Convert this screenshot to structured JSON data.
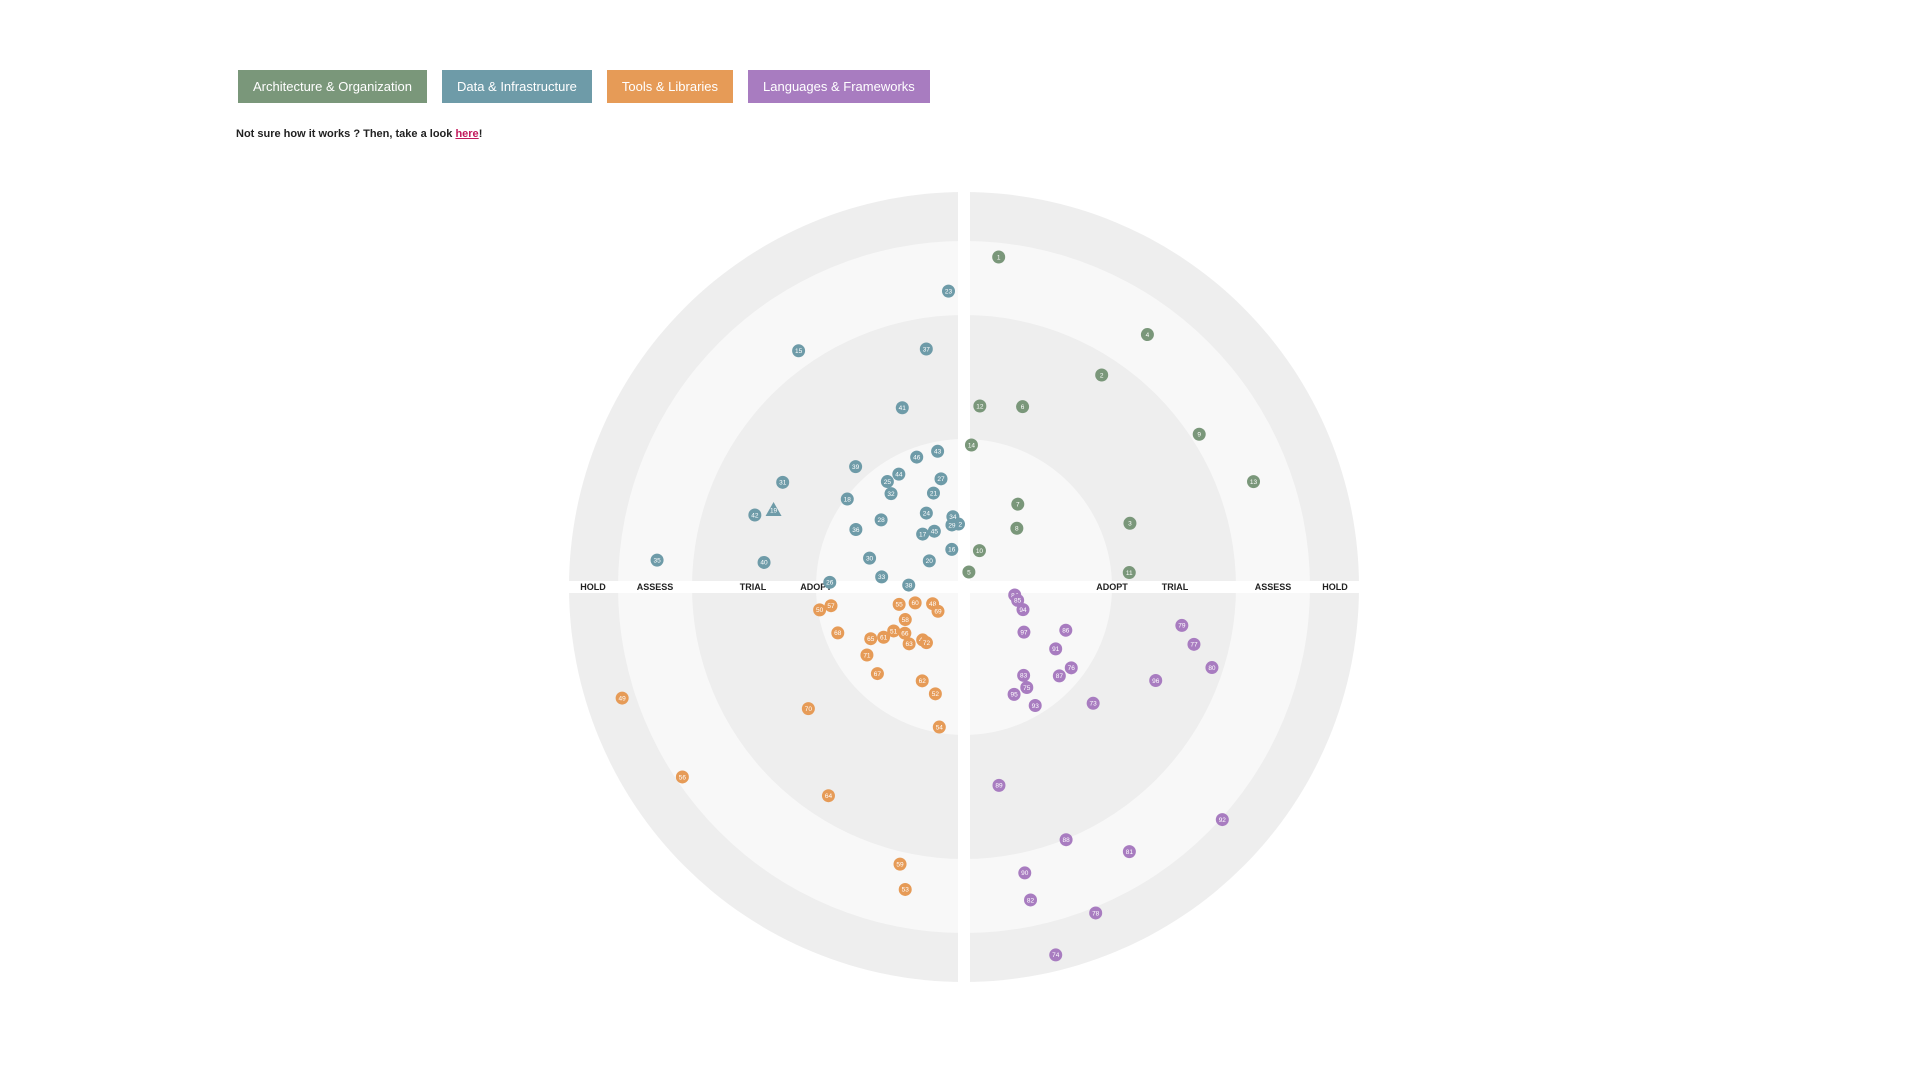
{
  "quadrant_tabs": [
    {
      "label": "Architecture & Organization",
      "color": "#7a977a"
    },
    {
      "label": "Data & Infrastructure",
      "color": "#6e9ba8"
    },
    {
      "label": "Tools & Libraries",
      "color": "#e69b57"
    },
    {
      "label": "Languages & Frameworks",
      "color": "#a87cc0"
    }
  ],
  "help": {
    "prefix": "Not sure how it works ? Then, take a look ",
    "link": "here",
    "suffix": "!"
  },
  "chart_data": {
    "type": "scatter",
    "rings": [
      "ADOPT",
      "TRIAL",
      "ASSESS",
      "HOLD"
    ],
    "quadrants": [
      {
        "name": "Architecture & Organization",
        "color": "#7a977a"
      },
      {
        "name": "Data & Infrastructure",
        "color": "#6e9ba8"
      },
      {
        "name": "Tools & Libraries",
        "color": "#e69b57"
      },
      {
        "name": "Languages & Frameworks",
        "color": "#a87cc0"
      }
    ],
    "ring_colors": [
      "#eeeeee",
      "#f8f8f8",
      "#eeeeee",
      "#f8f8f8",
      "#eeeeee"
    ],
    "blips": [
      {
        "id": "1",
        "q": 0,
        "r": 0.84,
        "a": 84,
        "shape": "circle"
      },
      {
        "id": "2",
        "q": 0,
        "r": 0.64,
        "a": 57,
        "shape": "circle"
      },
      {
        "id": "3",
        "q": 0,
        "r": 0.45,
        "a": 21,
        "shape": "circle"
      },
      {
        "id": "4",
        "q": 0,
        "r": 0.79,
        "a": 54,
        "shape": "circle"
      },
      {
        "id": "5",
        "q": 0,
        "r": 0.04,
        "a": 72,
        "shape": "circle"
      },
      {
        "id": "6",
        "q": 0,
        "r": 0.48,
        "a": 72,
        "shape": "circle"
      },
      {
        "id": "7",
        "q": 0,
        "r": 0.25,
        "a": 57,
        "shape": "circle"
      },
      {
        "id": "8",
        "q": 0,
        "r": 0.2,
        "a": 48,
        "shape": "circle"
      },
      {
        "id": "9",
        "q": 0,
        "r": 0.71,
        "a": 33,
        "shape": "circle"
      },
      {
        "id": "10",
        "q": 0,
        "r": 0.1,
        "a": 67,
        "shape": "circle"
      },
      {
        "id": "11",
        "q": 0,
        "r": 0.42,
        "a": 5,
        "shape": "circle"
      },
      {
        "id": "12",
        "q": 0,
        "r": 0.46,
        "a": 85,
        "shape": "circle"
      },
      {
        "id": "13",
        "q": 0,
        "r": 0.78,
        "a": 20,
        "shape": "circle"
      },
      {
        "id": "14",
        "q": 0,
        "r": 0.36,
        "a": 87,
        "shape": "circle"
      },
      {
        "id": "15",
        "q": 1,
        "r": 0.73,
        "a": 125,
        "shape": "circle"
      },
      {
        "id": "16",
        "q": 1,
        "r": 0.1,
        "a": 108,
        "shape": "circle"
      },
      {
        "id": "17",
        "q": 1,
        "r": 0.17,
        "a": 128,
        "shape": "circle"
      },
      {
        "id": "18",
        "q": 1,
        "r": 0.37,
        "a": 143,
        "shape": "circle"
      },
      {
        "id": "19",
        "q": 1,
        "r": 0.52,
        "a": 158,
        "shape": "triangle"
      },
      {
        "id": "20",
        "q": 1,
        "r": 0.11,
        "a": 143,
        "shape": "circle"
      },
      {
        "id": "21",
        "q": 1,
        "r": 0.25,
        "a": 108,
        "shape": "circle"
      },
      {
        "id": "22",
        "q": 1,
        "r": 0.16,
        "a": 95,
        "shape": "circle"
      },
      {
        "id": "23",
        "q": 1,
        "r": 0.75,
        "a": 93,
        "shape": "circle"
      },
      {
        "id": "24",
        "q": 1,
        "r": 0.21,
        "a": 117,
        "shape": "circle"
      },
      {
        "id": "25",
        "q": 1,
        "r": 0.33,
        "a": 126,
        "shape": "circle"
      },
      {
        "id": "26",
        "q": 1,
        "r": 0.34,
        "a": 178,
        "shape": "circle"
      },
      {
        "id": "27",
        "q": 1,
        "r": 0.28,
        "a": 102,
        "shape": "circle"
      },
      {
        "id": "28",
        "q": 1,
        "r": 0.27,
        "a": 141,
        "shape": "circle"
      },
      {
        "id": "29",
        "q": 1,
        "r": 0.16,
        "a": 101,
        "shape": "circle"
      },
      {
        "id": "30",
        "q": 1,
        "r": 0.25,
        "a": 163,
        "shape": "circle"
      },
      {
        "id": "31",
        "q": 1,
        "r": 0.53,
        "a": 150,
        "shape": "circle"
      },
      {
        "id": "32",
        "q": 1,
        "r": 0.3,
        "a": 128,
        "shape": "circle"
      },
      {
        "id": "33",
        "q": 1,
        "r": 0.21,
        "a": 173,
        "shape": "circle"
      },
      {
        "id": "34",
        "q": 1,
        "r": 0.18,
        "a": 99,
        "shape": "circle"
      },
      {
        "id": "35",
        "q": 1,
        "r": 0.78,
        "a": 175,
        "shape": "circle"
      },
      {
        "id": "36",
        "q": 1,
        "r": 0.31,
        "a": 152,
        "shape": "circle"
      },
      {
        "id": "37",
        "q": 1,
        "r": 0.61,
        "a": 99,
        "shape": "circle"
      },
      {
        "id": "38",
        "q": 1,
        "r": 0.14,
        "a": 178,
        "shape": "circle"
      },
      {
        "id": "39",
        "q": 1,
        "r": 0.41,
        "a": 132,
        "shape": "circle"
      },
      {
        "id": "40",
        "q": 1,
        "r": 0.51,
        "a": 173,
        "shape": "circle"
      },
      {
        "id": "41",
        "q": 1,
        "r": 0.48,
        "a": 109,
        "shape": "circle"
      },
      {
        "id": "42",
        "q": 1,
        "r": 0.56,
        "a": 161,
        "shape": "circle"
      },
      {
        "id": "43",
        "q": 1,
        "r": 0.35,
        "a": 101,
        "shape": "circle"
      },
      {
        "id": "44",
        "q": 1,
        "r": 0.33,
        "a": 120,
        "shape": "circle"
      },
      {
        "id": "45",
        "q": 1,
        "r": 0.16,
        "a": 118,
        "shape": "circle"
      },
      {
        "id": "46",
        "q": 1,
        "r": 0.35,
        "a": 110,
        "shape": "circle"
      },
      {
        "id": "47",
        "q": 2,
        "r": 0.17,
        "a": 232,
        "shape": "circle"
      },
      {
        "id": "48",
        "q": 2,
        "r": 0.09,
        "a": 208,
        "shape": "circle"
      },
      {
        "id": "49",
        "q": 2,
        "r": 0.91,
        "a": 198,
        "shape": "circle"
      },
      {
        "id": "50",
        "q": 2,
        "r": 0.37,
        "a": 189,
        "shape": "circle"
      },
      {
        "id": "51",
        "q": 2,
        "r": 0.21,
        "a": 212,
        "shape": "circle"
      },
      {
        "id": "52",
        "q": 2,
        "r": 0.28,
        "a": 255,
        "shape": "circle"
      },
      {
        "id": "53",
        "q": 2,
        "r": 0.78,
        "a": 259,
        "shape": "circle"
      },
      {
        "id": "54",
        "q": 2,
        "r": 0.36,
        "a": 260,
        "shape": "circle"
      },
      {
        "id": "55",
        "q": 2,
        "r": 0.17,
        "a": 195,
        "shape": "circle"
      },
      {
        "id": "56",
        "q": 2,
        "r": 0.86,
        "a": 214,
        "shape": "circle"
      },
      {
        "id": "57",
        "q": 2,
        "r": 0.34,
        "a": 188,
        "shape": "circle"
      },
      {
        "id": "58",
        "q": 2,
        "r": 0.17,
        "a": 209,
        "shape": "circle"
      },
      {
        "id": "59",
        "q": 2,
        "r": 0.72,
        "a": 257,
        "shape": "circle"
      },
      {
        "id": "60",
        "q": 2,
        "r": 0.13,
        "a": 198,
        "shape": "circle"
      },
      {
        "id": "61",
        "q": 2,
        "r": 0.24,
        "a": 212,
        "shape": "circle"
      },
      {
        "id": "62",
        "q": 2,
        "r": 0.26,
        "a": 246,
        "shape": "circle"
      },
      {
        "id": "63",
        "q": 2,
        "r": 0.2,
        "a": 226,
        "shape": "circle"
      },
      {
        "id": "64",
        "q": 2,
        "r": 0.63,
        "a": 237,
        "shape": "circle"
      },
      {
        "id": "65",
        "q": 2,
        "r": 0.27,
        "a": 209,
        "shape": "circle"
      },
      {
        "id": "66",
        "q": 2,
        "r": 0.19,
        "a": 218,
        "shape": "circle"
      },
      {
        "id": "67",
        "q": 2,
        "r": 0.31,
        "a": 225,
        "shape": "circle"
      },
      {
        "id": "68",
        "q": 2,
        "r": 0.34,
        "a": 200,
        "shape": "circle"
      },
      {
        "id": "69",
        "q": 2,
        "r": 0.09,
        "a": 223,
        "shape": "circle"
      },
      {
        "id": "70",
        "q": 2,
        "r": 0.5,
        "a": 218,
        "shape": "circle"
      },
      {
        "id": "71",
        "q": 2,
        "r": 0.3,
        "a": 215,
        "shape": "circle"
      },
      {
        "id": "72",
        "q": 2,
        "r": 0.17,
        "a": 236,
        "shape": "circle"
      },
      {
        "id": "73",
        "q": 3,
        "r": 0.44,
        "a": 318,
        "shape": "circle"
      },
      {
        "id": "74",
        "q": 3,
        "r": 0.96,
        "a": 284,
        "shape": "circle"
      },
      {
        "id": "75",
        "q": 3,
        "r": 0.3,
        "a": 302,
        "shape": "circle"
      },
      {
        "id": "76",
        "q": 3,
        "r": 0.34,
        "a": 323,
        "shape": "circle"
      },
      {
        "id": "77",
        "q": 3,
        "r": 0.6,
        "a": 346,
        "shape": "circle"
      },
      {
        "id": "78",
        "q": 3,
        "r": 0.89,
        "a": 292,
        "shape": "circle"
      },
      {
        "id": "79",
        "q": 3,
        "r": 0.56,
        "a": 350,
        "shape": "circle"
      },
      {
        "id": "80",
        "q": 3,
        "r": 0.66,
        "a": 342,
        "shape": "circle"
      },
      {
        "id": "81",
        "q": 3,
        "r": 0.79,
        "a": 302,
        "shape": "circle"
      },
      {
        "id": "82",
        "q": 3,
        "r": 0.81,
        "a": 282,
        "shape": "circle"
      },
      {
        "id": "83",
        "q": 3,
        "r": 0.27,
        "a": 304,
        "shape": "circle"
      },
      {
        "id": "84",
        "q": 3,
        "r": 0.13,
        "a": 351,
        "shape": "circle"
      },
      {
        "id": "85",
        "q": 3,
        "r": 0.14,
        "a": 346,
        "shape": "circle"
      },
      {
        "id": "86",
        "q": 3,
        "r": 0.28,
        "a": 337,
        "shape": "circle"
      },
      {
        "id": "87",
        "q": 3,
        "r": 0.33,
        "a": 317,
        "shape": "circle"
      },
      {
        "id": "88",
        "q": 3,
        "r": 0.69,
        "a": 292,
        "shape": "circle"
      },
      {
        "id": "89",
        "q": 3,
        "r": 0.51,
        "a": 280,
        "shape": "circle"
      },
      {
        "id": "90",
        "q": 3,
        "r": 0.74,
        "a": 282,
        "shape": "circle"
      },
      {
        "id": "91",
        "q": 3,
        "r": 0.28,
        "a": 326,
        "shape": "circle"
      },
      {
        "id": "92",
        "q": 3,
        "r": 0.88,
        "a": 318,
        "shape": "circle"
      },
      {
        "id": "93",
        "q": 3,
        "r": 0.35,
        "a": 301,
        "shape": "circle"
      },
      {
        "id": "94",
        "q": 3,
        "r": 0.16,
        "a": 339,
        "shape": "circle"
      },
      {
        "id": "95",
        "q": 3,
        "r": 0.3,
        "a": 295,
        "shape": "circle"
      },
      {
        "id": "96",
        "q": 3,
        "r": 0.54,
        "a": 334,
        "shape": "circle"
      },
      {
        "id": "97",
        "q": 3,
        "r": 0.19,
        "a": 323,
        "shape": "circle"
      }
    ]
  }
}
